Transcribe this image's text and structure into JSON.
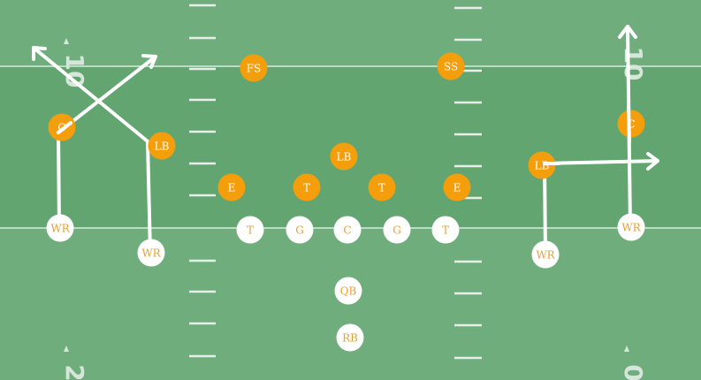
{
  "colors": {
    "field_light": "#6fae7c",
    "field_dark": "#62a570",
    "line_white": "#ffffff",
    "defense_orange": "#f59e0b",
    "offense_white": "#ffffff",
    "offense_text": "#e3a13a",
    "defense_text": "#ffffff",
    "yard_number": "#d6e6da"
  },
  "yard_numbers": [
    {
      "id": "left-top",
      "text": "10"
    },
    {
      "id": "left-bottom",
      "text": "2"
    },
    {
      "id": "right-top",
      "text": "10"
    },
    {
      "id": "right-bottom",
      "text": "0"
    }
  ],
  "defense": [
    {
      "id": "fs",
      "label": "FS"
    },
    {
      "id": "ss",
      "label": "SS"
    },
    {
      "id": "lb-mid",
      "label": "LB"
    },
    {
      "id": "e-left",
      "label": "E"
    },
    {
      "id": "t-left",
      "label": "T"
    },
    {
      "id": "t-right",
      "label": "T"
    },
    {
      "id": "e-right",
      "label": "E"
    },
    {
      "id": "lb-left",
      "label": "LB"
    },
    {
      "id": "c-left",
      "label": "C"
    },
    {
      "id": "lb-right",
      "label": "LB"
    },
    {
      "id": "c-right",
      "label": "C"
    }
  ],
  "offense": [
    {
      "id": "wr-1",
      "label": "WR"
    },
    {
      "id": "wr-2",
      "label": "WR"
    },
    {
      "id": "t-ol-left",
      "label": "T"
    },
    {
      "id": "g-left",
      "label": "G"
    },
    {
      "id": "c-center",
      "label": "C"
    },
    {
      "id": "g-right",
      "label": "G"
    },
    {
      "id": "t-ol-right",
      "label": "T"
    },
    {
      "id": "wr-3",
      "label": "WR"
    },
    {
      "id": "wr-4",
      "label": "WR"
    },
    {
      "id": "qb",
      "label": "QB"
    },
    {
      "id": "rb",
      "label": "RB"
    }
  ]
}
